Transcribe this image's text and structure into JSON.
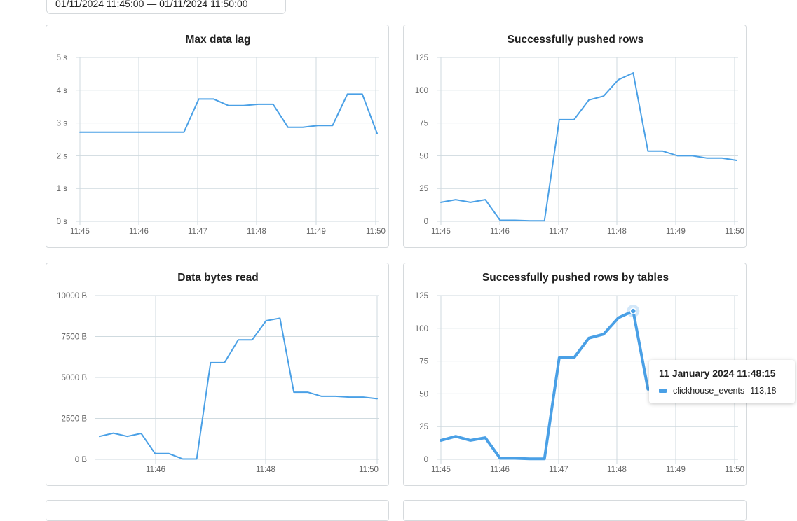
{
  "time_range": {
    "label": "01/11/2024 11:45:00 — 01/11/2024 11:50:00"
  },
  "colors": {
    "series": "#4aa0e6",
    "grid": "#cfdadf"
  },
  "tooltip": {
    "title": "11 January 2024 11:48:15",
    "series_name": "clickhouse_events",
    "value": "113,18"
  },
  "chart_data": [
    {
      "type": "line",
      "title": "Max data lag",
      "x_ticks": [
        "11:45",
        "11:46",
        "11:47",
        "11:48",
        "11:49",
        "11:50"
      ],
      "y_ticks": [
        "0 s",
        "1 s",
        "2 s",
        "3 s",
        "4 s",
        "5 s"
      ],
      "ylim": [
        0,
        5
      ],
      "grid": true,
      "x": [
        "11:45:00",
        "11:45:15",
        "11:45:30",
        "11:45:45",
        "11:46:00",
        "11:46:15",
        "11:46:30",
        "11:46:45",
        "11:47:00",
        "11:47:15",
        "11:47:30",
        "11:47:45",
        "11:48:00",
        "11:48:15",
        "11:48:30",
        "11:48:45",
        "11:49:00",
        "11:49:15",
        "11:49:30",
        "11:49:45",
        "11:50:00"
      ],
      "series": [
        {
          "values": [
            2.72,
            2.72,
            2.72,
            2.72,
            2.72,
            2.72,
            2.72,
            2.72,
            3.73,
            3.73,
            3.53,
            3.53,
            3.57,
            3.57,
            2.87,
            2.87,
            2.92,
            2.92,
            3.88,
            3.88,
            2.68
          ]
        }
      ]
    },
    {
      "type": "line",
      "title": "Successfully pushed rows",
      "x_ticks": [
        "11:45",
        "11:46",
        "11:47",
        "11:48",
        "11:49",
        "11:50"
      ],
      "y_ticks": [
        "0",
        "25",
        "50",
        "75",
        "100",
        "125"
      ],
      "ylim": [
        0,
        125
      ],
      "grid": true,
      "x": [
        "11:45:00",
        "11:45:15",
        "11:45:30",
        "11:45:45",
        "11:46:00",
        "11:46:15",
        "11:46:30",
        "11:46:45",
        "11:47:00",
        "11:47:15",
        "11:47:30",
        "11:47:45",
        "11:48:00",
        "11:48:15",
        "11:48:30",
        "11:48:45",
        "11:49:00",
        "11:49:15",
        "11:49:30",
        "11:49:45",
        "11:50:00"
      ],
      "series": [
        {
          "values": [
            14.5,
            16.5,
            14.5,
            16.5,
            0.8,
            0.8,
            0.4,
            0.4,
            77.5,
            77.5,
            92.5,
            95.5,
            108,
            113.2,
            53.5,
            53.5,
            50,
            50,
            48.2,
            48.2,
            46.5
          ]
        }
      ]
    },
    {
      "type": "line",
      "title": "Data bytes read",
      "x_ticks": [
        "",
        "11:46",
        "",
        "11:48",
        "",
        "11:50"
      ],
      "y_ticks": [
        "0 B",
        "2500 B",
        "5000 B",
        "7500 B",
        "10000 B",
        ""
      ],
      "ylim": [
        0,
        10000
      ],
      "grid": true,
      "x": [
        "11:45:00",
        "11:45:15",
        "11:45:30",
        "11:45:45",
        "11:46:00",
        "11:46:15",
        "11:46:30",
        "11:46:45",
        "11:47:00",
        "11:47:15",
        "11:47:30",
        "11:47:45",
        "11:48:00",
        "11:48:15",
        "11:48:30",
        "11:48:45",
        "11:49:00",
        "11:49:15",
        "11:49:30",
        "11:49:45",
        "11:50:00"
      ],
      "series": [
        {
          "values": [
            1400,
            1600,
            1400,
            1580,
            350,
            350,
            20,
            20,
            5900,
            5900,
            7300,
            7300,
            8460,
            8620,
            4100,
            4100,
            3850,
            3850,
            3800,
            3800,
            3700
          ]
        }
      ]
    },
    {
      "type": "line",
      "title": "Successfully pushed rows by tables",
      "x_ticks": [
        "11:45",
        "11:46",
        "11:47",
        "11:48",
        "11:49",
        "11:50"
      ],
      "y_ticks": [
        "0",
        "25",
        "50",
        "75",
        "100",
        "125"
      ],
      "ylim": [
        0,
        125
      ],
      "grid": true,
      "x": [
        "11:45:00",
        "11:45:15",
        "11:45:30",
        "11:45:45",
        "11:46:00",
        "11:46:15",
        "11:46:30",
        "11:46:45",
        "11:47:00",
        "11:47:15",
        "11:47:30",
        "11:47:45",
        "11:48:00",
        "11:48:15",
        "11:48:30",
        "11:48:45",
        "11:49:00",
        "11:49:15",
        "11:49:30",
        "11:49:45",
        "11:50:00"
      ],
      "series": [
        {
          "name": "clickhouse_events",
          "values": [
            14.5,
            17.5,
            14.5,
            16.5,
            0.8,
            0.8,
            0.4,
            0.4,
            77.5,
            77.5,
            92.5,
            95.5,
            108,
            113.18,
            53.5,
            53.5,
            50,
            50,
            48.2,
            48.2,
            46.5
          ]
        }
      ],
      "highlight_index": 13
    }
  ]
}
